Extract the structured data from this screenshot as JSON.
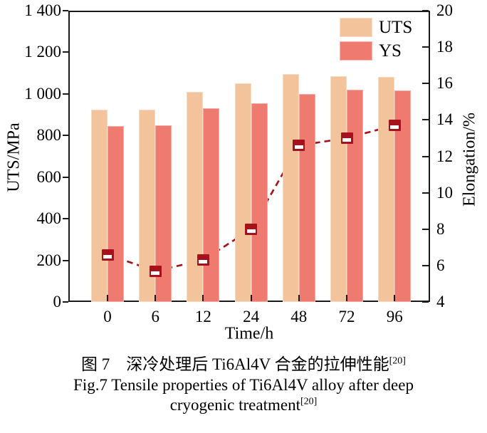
{
  "chart_data": {
    "type": "bar+line",
    "categories": [
      0,
      6,
      12,
      24,
      48,
      72,
      96
    ],
    "series": [
      {
        "name": "UTS",
        "type": "bar",
        "axis": "left",
        "color": "#F3C49B",
        "values": [
          925,
          925,
          1010,
          1050,
          1095,
          1085,
          1080
        ]
      },
      {
        "name": "YS",
        "type": "bar",
        "axis": "left",
        "color": "#EF7A6F",
        "values": [
          845,
          850,
          930,
          955,
          1000,
          1020,
          1015
        ]
      },
      {
        "name": "Elongation",
        "type": "line",
        "axis": "right",
        "color": "#A5121B",
        "line_style": "dashed",
        "marker": "half-filled-square",
        "values": [
          6.6,
          5.7,
          6.3,
          8.0,
          12.6,
          13.0,
          13.7
        ]
      }
    ],
    "left_axis": {
      "label": "UTS/MPa",
      "min": 0,
      "max": 1400,
      "tick_step": 200,
      "tick_labels": [
        "0",
        "200",
        "400",
        "600",
        "800",
        "1 000",
        "1 200",
        "1 400"
      ]
    },
    "right_axis": {
      "label": "Elongation/%",
      "min": 4,
      "max": 20,
      "tick_step": 2,
      "tick_labels": [
        "4",
        "6",
        "8",
        "10",
        "12",
        "14",
        "16",
        "18",
        "20"
      ]
    },
    "x_axis": {
      "label": "Time/h",
      "tick_labels": [
        "0",
        "6",
        "12",
        "24",
        "48",
        "72",
        "96"
      ]
    },
    "legend": {
      "position": "top-right",
      "items": [
        {
          "label": "UTS",
          "color": "#F3C49B"
        },
        {
          "label": "YS",
          "color": "#EF7A6F"
        }
      ]
    },
    "grid": false
  },
  "caption": {
    "zh": "图 7　深冷处理后 Ti6Al4V 合金的拉伸性能",
    "zh_sup": "[20]",
    "en_line1": "Fig.7 Tensile properties of Ti6Al4V alloy after deep",
    "en_line2": "cryogenic treatment",
    "en_sup": "[20]"
  }
}
